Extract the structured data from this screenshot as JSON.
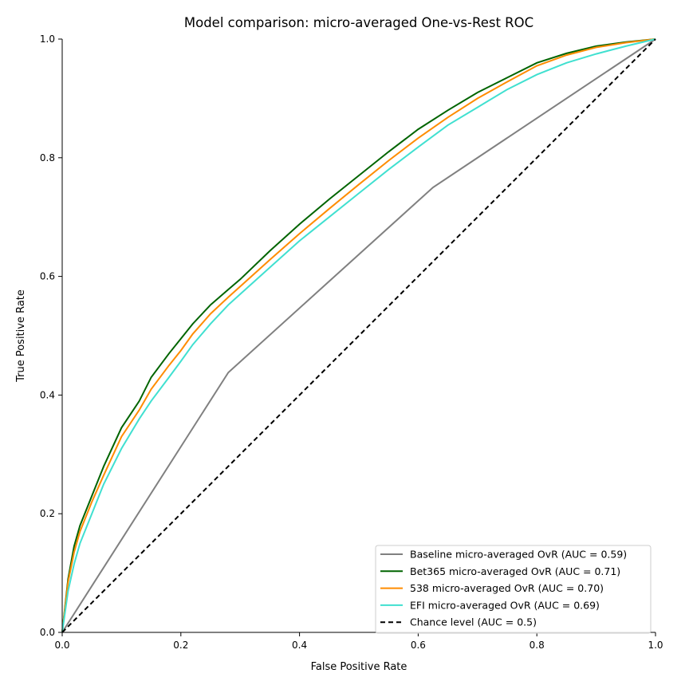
{
  "chart_data": {
    "type": "line",
    "title": "Model comparison: micro-averaged One-vs-Rest ROC",
    "xlabel": "False Positive Rate",
    "ylabel": "True Positive Rate",
    "xlim": [
      0.0,
      1.0
    ],
    "ylim": [
      0.0,
      1.0
    ],
    "xticks": [
      "0.0",
      "0.2",
      "0.4",
      "0.6",
      "0.8",
      "1.0"
    ],
    "yticks": [
      "0.0",
      "0.2",
      "0.4",
      "0.6",
      "0.8",
      "1.0"
    ],
    "grid": false,
    "legend_position": "bottom-right",
    "series": [
      {
        "name": "Baseline micro-averaged OvR (AUC = 0.59)",
        "color": "#808080",
        "dash": "solid",
        "x": [
          0.0,
          0.28,
          0.625,
          1.0
        ],
        "y": [
          0.0,
          0.438,
          0.75,
          1.0
        ]
      },
      {
        "name": "Bet365 micro-averaged OvR (AUC = 0.71)",
        "color": "#006400",
        "dash": "solid",
        "x": [
          0.0,
          0.01,
          0.02,
          0.03,
          0.05,
          0.07,
          0.1,
          0.13,
          0.15,
          0.18,
          0.2,
          0.22,
          0.25,
          0.28,
          0.3,
          0.35,
          0.4,
          0.45,
          0.5,
          0.55,
          0.6,
          0.65,
          0.7,
          0.75,
          0.8,
          0.85,
          0.9,
          0.95,
          1.0
        ],
        "y": [
          0.0,
          0.09,
          0.145,
          0.18,
          0.23,
          0.28,
          0.345,
          0.39,
          0.43,
          0.47,
          0.495,
          0.52,
          0.552,
          0.578,
          0.595,
          0.643,
          0.688,
          0.73,
          0.77,
          0.81,
          0.848,
          0.88,
          0.91,
          0.935,
          0.96,
          0.976,
          0.988,
          0.995,
          1.0
        ]
      },
      {
        "name": "538 micro-averaged OvR (AUC = 0.70)",
        "color": "#ff8c00",
        "dash": "solid",
        "x": [
          0.0,
          0.01,
          0.02,
          0.03,
          0.05,
          0.07,
          0.1,
          0.13,
          0.15,
          0.18,
          0.2,
          0.22,
          0.25,
          0.28,
          0.3,
          0.35,
          0.4,
          0.45,
          0.5,
          0.55,
          0.6,
          0.65,
          0.7,
          0.75,
          0.8,
          0.85,
          0.9,
          0.95,
          1.0
        ],
        "y": [
          0.0,
          0.085,
          0.135,
          0.17,
          0.22,
          0.265,
          0.33,
          0.375,
          0.41,
          0.45,
          0.475,
          0.503,
          0.537,
          0.565,
          0.583,
          0.628,
          0.672,
          0.714,
          0.755,
          0.795,
          0.833,
          0.868,
          0.9,
          0.928,
          0.955,
          0.973,
          0.986,
          0.994,
          1.0
        ]
      },
      {
        "name": "EFI micro-averaged OvR (AUC = 0.69)",
        "color": "#40e0d0",
        "dash": "solid",
        "x": [
          0.0,
          0.01,
          0.02,
          0.03,
          0.05,
          0.07,
          0.1,
          0.13,
          0.15,
          0.18,
          0.2,
          0.22,
          0.25,
          0.28,
          0.3,
          0.35,
          0.4,
          0.45,
          0.5,
          0.55,
          0.6,
          0.65,
          0.7,
          0.75,
          0.8,
          0.85,
          0.9,
          0.95,
          1.0
        ],
        "y": [
          0.0,
          0.07,
          0.115,
          0.15,
          0.2,
          0.25,
          0.31,
          0.36,
          0.39,
          0.43,
          0.457,
          0.485,
          0.52,
          0.552,
          0.57,
          0.615,
          0.66,
          0.7,
          0.74,
          0.78,
          0.818,
          0.855,
          0.885,
          0.915,
          0.94,
          0.96,
          0.975,
          0.988,
          1.0
        ]
      },
      {
        "name": "Chance level (AUC = 0.5)",
        "color": "#000000",
        "dash": "dashed",
        "x": [
          0.0,
          1.0
        ],
        "y": [
          0.0,
          1.0
        ]
      }
    ]
  }
}
